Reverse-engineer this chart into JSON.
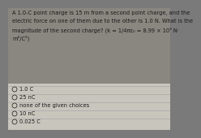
{
  "background_color": "#7a7a7a",
  "choices_bg_color": "#c8c5bc",
  "question_bg_color": "#8a8680",
  "question_text_lines": [
    "A 1.0-C point charge is 15 m from a second point charge, and the",
    "electric force on one of them due to the other is 1.0 N. What is the",
    "magnitude of the second charge? (k = 1/4πε₀ = 8.99 × 10⁹ N·",
    "m²/C²)"
  ],
  "choices": [
    "1.0 C",
    "25 nC",
    "none of the given choices",
    "10 nC",
    "0.025 C"
  ],
  "text_color": "#1a1a1a",
  "divider_color": "#a0a0a0",
  "question_fontsize": 4.8,
  "choice_fontsize": 4.8,
  "fig_width": 2.0,
  "fig_height": 1.5
}
